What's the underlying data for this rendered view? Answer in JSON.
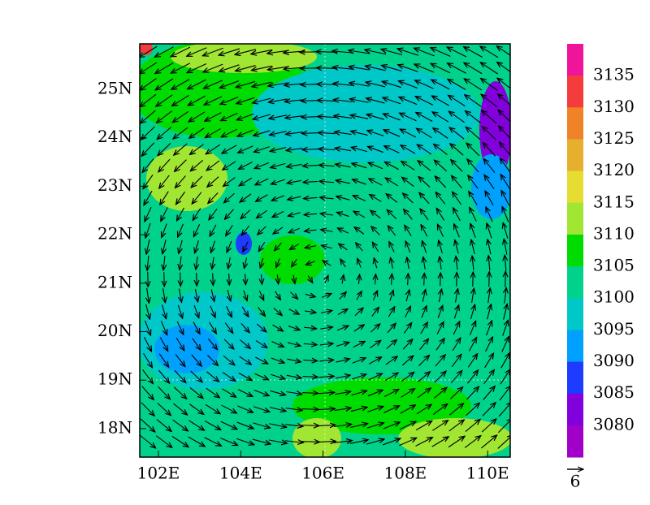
{
  "map": {
    "lat_labels": [
      "25N",
      "24N",
      "23N",
      "22N",
      "21N",
      "20N",
      "19N",
      "18N"
    ],
    "lon_labels": [
      "102E",
      "104E",
      "106E",
      "108E",
      "110E"
    ],
    "colorbar": {
      "levels": [
        3135,
        3130,
        3125,
        3120,
        3115,
        3110,
        3105,
        3100,
        3095,
        3090,
        3085,
        3080
      ],
      "colors": [
        "#f0149a",
        "#f53c3c",
        "#f08228",
        "#e6af2d",
        "#e6dc32",
        "#a0e632",
        "#00dc00",
        "#00d28c",
        "#00c8c8",
        "#00a0ff",
        "#1e3cff",
        "#8200dc",
        "#a000c8"
      ]
    },
    "reference_vector": "6"
  }
}
